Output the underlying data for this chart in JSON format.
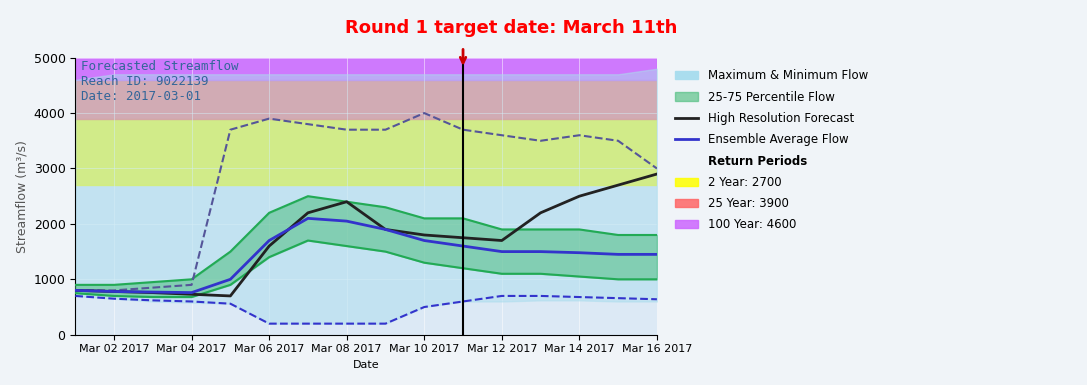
{
  "title_top": "Round 1 target date: March 11th",
  "title_top_color": "#ff0000",
  "info_text": "Forecasted Streamflow\nReach ID: 9022139\nDate: 2017-03-01",
  "info_text_color": "#336699",
  "ylabel": "Streamflow (m³/s)",
  "xlabel": "Date",
  "ylim": [
    0,
    5000
  ],
  "bg_color": "#dce9f5",
  "plot_bg_color": "#dce9f5",
  "vertical_line_day": 10,
  "vertical_line_color": "black",
  "arrow_color": "#cc0000",
  "return_periods": {
    "2year": 2700,
    "25year": 3900,
    "100year": 4600
  },
  "return_colors": {
    "2year": "#ffff00",
    "25year": "#ff6666",
    "100year": "#cc66ff"
  },
  "days": [
    0,
    1,
    2,
    3,
    4,
    5,
    6,
    7,
    8,
    9,
    10,
    11,
    12,
    13,
    14,
    15
  ],
  "max_flow": [
    4600,
    4700,
    4700,
    4700,
    4700,
    4700,
    4700,
    4700,
    4700,
    4700,
    4700,
    4700,
    4700,
    4700,
    4700,
    4800
  ],
  "min_flow": [
    700,
    650,
    600,
    580,
    560,
    200,
    200,
    200,
    200,
    500,
    600,
    600,
    620,
    620,
    600,
    600
  ],
  "p75_flow": [
    900,
    900,
    950,
    1000,
    1500,
    2200,
    2500,
    2400,
    2300,
    2100,
    2100,
    1900,
    1900,
    1900,
    1800,
    1800
  ],
  "p25_flow": [
    750,
    700,
    680,
    680,
    900,
    1400,
    1700,
    1600,
    1500,
    1300,
    1200,
    1100,
    1100,
    1050,
    1000,
    1000
  ],
  "hires_flow": [
    800,
    780,
    760,
    730,
    700,
    1600,
    2200,
    2400,
    1900,
    1800,
    1750,
    1700,
    2200,
    2500,
    2700,
    2900
  ],
  "ensemble_flow": [
    800,
    780,
    770,
    760,
    1000,
    1700,
    2100,
    2050,
    1900,
    1700,
    1600,
    1500,
    1500,
    1480,
    1450,
    1450
  ],
  "max_dashed": [
    800,
    800,
    850,
    900,
    3700,
    3900,
    3800,
    3700,
    3700,
    4000,
    3700,
    3600,
    3500,
    3600,
    3500,
    3000
  ],
  "min_dashed": [
    700,
    650,
    620,
    600,
    560,
    200,
    200,
    200,
    200,
    500,
    600,
    700,
    700,
    680,
    660,
    640
  ],
  "legend_items": [
    {
      "label": "Maximum & Minimum Flow",
      "color": "#aaddee",
      "lw": 4,
      "ls": "solid",
      "patch": true
    },
    {
      "label": "25-75 Percentile Flow",
      "color": "#44bb77",
      "lw": 4,
      "ls": "solid",
      "patch": true
    },
    {
      "label": "High Resolution Forecast",
      "color": "#222222",
      "lw": 2,
      "ls": "solid",
      "patch": false
    },
    {
      "label": "Ensemble Average Flow",
      "color": "#3333cc",
      "lw": 2,
      "ls": "solid",
      "patch": false
    }
  ],
  "return_legend": [
    {
      "label": "2 Year: 2700",
      "color": "#ffff00"
    },
    {
      "label": "25 Year: 3900",
      "color": "#ff6666"
    },
    {
      "label": "100 Year: 4600",
      "color": "#cc66ff"
    }
  ],
  "start_date": "2017-03-01",
  "target_date": "2017-03-11",
  "end_date": "2017-03-16"
}
